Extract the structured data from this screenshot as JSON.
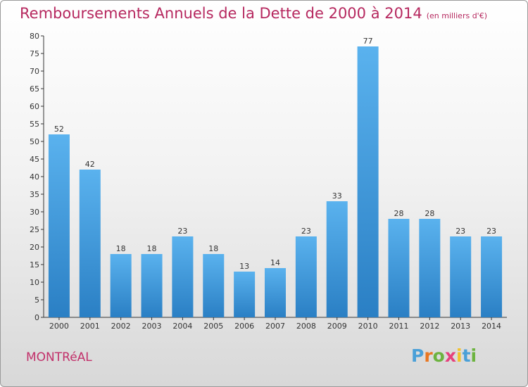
{
  "title": "Remboursements Annuels de la Dette de 2000 à 2014",
  "unit": "(en milliers d'€)",
  "commune": "MONTRéAL",
  "logo": {
    "letters": [
      "P",
      "r",
      "o",
      "x",
      "i",
      "t",
      "i"
    ],
    "colors": [
      "#4aa0d8",
      "#e87722",
      "#6cb33f",
      "#e6407c",
      "#f2c12e",
      "#4aa0d8",
      "#6cb33f"
    ]
  },
  "chart_data": {
    "type": "bar",
    "title": "Remboursements Annuels de la Dette de 2000 à 2014",
    "xlabel": "",
    "ylabel": "",
    "ylim": [
      0,
      80
    ],
    "ytick_step": 5,
    "grid": false,
    "bar_color": "#4aa6e8",
    "categories": [
      "2000",
      "2001",
      "2002",
      "2003",
      "2004",
      "2005",
      "2006",
      "2007",
      "2008",
      "2009",
      "2010",
      "2011",
      "2012",
      "2013",
      "2014"
    ],
    "values": [
      52,
      42,
      18,
      18,
      23,
      18,
      13,
      14,
      23,
      33,
      77,
      28,
      28,
      23,
      23
    ],
    "data_labels": [
      "52",
      "42",
      "18",
      "18",
      "23",
      "18",
      "13",
      "14",
      "23",
      "33",
      "77",
      "28",
      "28",
      "23",
      "23"
    ]
  }
}
